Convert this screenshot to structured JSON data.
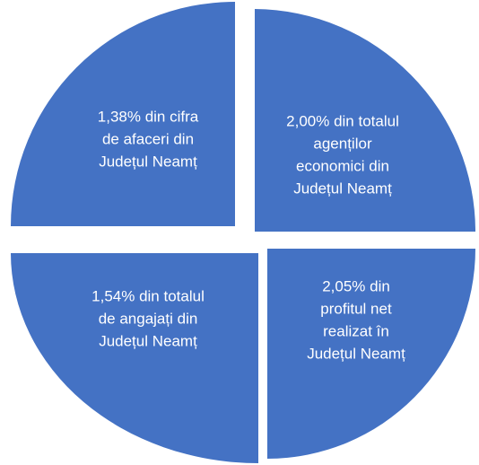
{
  "segments": [
    {
      "lines": [
        "1,38% din cifra",
        "de afaceri din",
        "Județul Neamț"
      ]
    },
    {
      "lines": [
        "2,00% din totalul",
        "agenților",
        "economici din",
        "Județul Neamț"
      ]
    },
    {
      "lines": [
        "1,54% din totalul",
        "de angajați din",
        "Județul Neamț"
      ]
    },
    {
      "lines": [
        "2,05% din",
        "profitul net",
        "realizat în",
        "Județul Neamț"
      ]
    }
  ]
}
